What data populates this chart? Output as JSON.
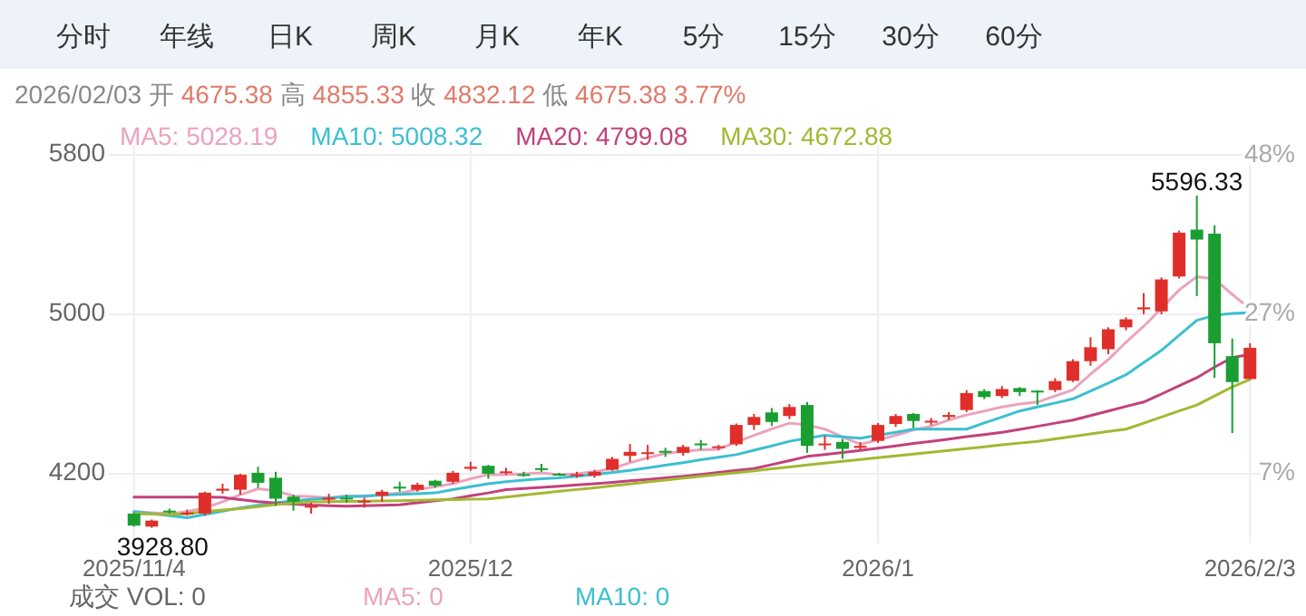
{
  "chart_data": {
    "type": "candlestick",
    "title": "2026/02/03 开 4675.38 高 4855.33 收 4832.12 低 4675.38 3.77%",
    "categories": [
      "2025/11/4",
      null,
      null,
      null,
      null,
      null,
      null,
      null,
      null,
      null,
      null,
      null,
      null,
      null,
      null,
      null,
      null,
      null,
      null,
      "2025/12",
      null,
      null,
      null,
      null,
      null,
      null,
      null,
      null,
      null,
      null,
      null,
      null,
      null,
      null,
      null,
      null,
      null,
      null,
      null,
      null,
      null,
      null,
      "2026/1",
      null,
      null,
      null,
      null,
      null,
      null,
      null,
      null,
      null,
      null,
      null,
      null,
      null,
      null,
      null,
      null,
      null,
      null,
      null,
      null,
      "2026/2/3"
    ],
    "ohlc": [
      [
        4000,
        4005,
        3935,
        3940
      ],
      [
        3935,
        3970,
        3928.8,
        3965
      ],
      [
        4015,
        4025,
        4000,
        4010
      ],
      [
        4000,
        4020,
        3990,
        4005
      ],
      [
        4000,
        4110,
        3990,
        4105
      ],
      [
        4115,
        4150,
        4100,
        4125
      ],
      [
        4120,
        4200,
        4095,
        4195
      ],
      [
        4205,
        4235,
        4130,
        4155
      ],
      [
        4180,
        4210,
        4040,
        4075
      ],
      [
        4085,
        4095,
        4015,
        4060
      ],
      [
        4030,
        4055,
        4000,
        4040
      ],
      [
        4070,
        4100,
        4050,
        4080
      ],
      [
        4080,
        4095,
        4055,
        4075
      ],
      [
        4060,
        4080,
        4030,
        4065
      ],
      [
        4090,
        4120,
        4060,
        4110
      ],
      [
        4135,
        4160,
        4110,
        4128
      ],
      [
        4120,
        4155,
        4110,
        4145
      ],
      [
        4165,
        4170,
        4130,
        4140
      ],
      [
        4160,
        4215,
        4150,
        4205
      ],
      [
        4225,
        4260,
        4215,
        4235
      ],
      [
        4240,
        4245,
        4175,
        4200
      ],
      [
        4205,
        4230,
        4195,
        4212
      ],
      [
        4198,
        4210,
        4185,
        4195
      ],
      [
        4228,
        4250,
        4210,
        4222
      ],
      [
        4200,
        4205,
        4190,
        4195
      ],
      [
        4192,
        4210,
        4180,
        4198
      ],
      [
        4190,
        4220,
        4180,
        4210
      ],
      [
        4220,
        4285,
        4215,
        4275
      ],
      [
        4290,
        4350,
        4260,
        4310
      ],
      [
        4300,
        4345,
        4270,
        4308
      ],
      [
        4315,
        4330,
        4285,
        4308
      ],
      [
        4305,
        4345,
        4290,
        4335
      ],
      [
        4352,
        4370,
        4320,
        4345
      ],
      [
        4332,
        4345,
        4320,
        4338
      ],
      [
        4348,
        4452,
        4340,
        4445
      ],
      [
        4445,
        4500,
        4420,
        4485
      ],
      [
        4508,
        4530,
        4440,
        4460
      ],
      [
        4490,
        4550,
        4475,
        4535
      ],
      [
        4545,
        4560,
        4305,
        4340
      ],
      [
        4345,
        4390,
        4320,
        4352
      ],
      [
        4360,
        4375,
        4275,
        4325
      ],
      [
        4330,
        4360,
        4320,
        4340
      ],
      [
        4365,
        4455,
        4355,
        4445
      ],
      [
        4450,
        4500,
        4435,
        4490
      ],
      [
        4500,
        4505,
        4430,
        4465
      ],
      [
        4460,
        4480,
        4445,
        4466
      ],
      [
        4485,
        4510,
        4470,
        4495
      ],
      [
        4520,
        4620,
        4510,
        4605
      ],
      [
        4615,
        4625,
        4575,
        4585
      ],
      [
        4590,
        4640,
        4580,
        4625
      ],
      [
        4630,
        4635,
        4590,
        4610
      ],
      [
        4617,
        4620,
        4545,
        4610
      ],
      [
        4620,
        4680,
        4610,
        4665
      ],
      [
        4667,
        4775,
        4660,
        4765
      ],
      [
        4765,
        4885,
        4742,
        4835
      ],
      [
        4825,
        4935,
        4800,
        4925
      ],
      [
        4935,
        4985,
        4920,
        4975
      ],
      [
        5025,
        5107,
        5001,
        5035
      ],
      [
        5015,
        5185,
        5000,
        5175
      ],
      [
        5190,
        5420,
        5180,
        5410
      ],
      [
        5425,
        5596.33,
        5092,
        5375
      ],
      [
        5405,
        5447,
        4681,
        4855
      ],
      [
        4790,
        4879,
        4404,
        4660
      ],
      [
        4675.38,
        4855.33,
        4675.38,
        4832.12
      ]
    ],
    "series": [
      {
        "type": "line",
        "name": "MA5: 5028.19",
        "color": "#eba3bd",
        "values": [
          4010,
          4005,
          4000,
          4010,
          4029,
          4060,
          4095,
          4125,
          4115,
          4089,
          4085,
          4080,
          4089,
          4085,
          4095,
          4104,
          4120,
          4135,
          4150,
          4175,
          4196,
          4196,
          4200,
          4205,
          4196,
          4200,
          4210,
          4226,
          4255,
          4280,
          4302,
          4312,
          4320,
          4323,
          4360,
          4393,
          4425,
          4454,
          4445,
          4424,
          4385,
          4348,
          4370,
          4393,
          4420,
          4439,
          4470,
          4495,
          4515,
          4535,
          4550,
          4560,
          4590,
          4621,
          4700,
          4773,
          4860,
          4940,
          5030,
          5122,
          5189,
          5177,
          5100,
          5028.19
        ]
      },
      {
        "type": "line",
        "name": "MA10: 5008.32",
        "color": "#3cbfd0",
        "values": [
          4010,
          4000,
          3990,
          3980,
          3995,
          4012,
          4029,
          4042,
          4055,
          4065,
          4072,
          4078,
          4085,
          4089,
          4093,
          4097,
          4100,
          4104,
          4120,
          4135,
          4150,
          4160,
          4168,
          4175,
          4180,
          4187,
          4197,
          4207,
          4217,
          4230,
          4243,
          4256,
          4270,
          4283,
          4296,
          4318,
          4340,
          4363,
          4378,
          4393,
          4385,
          4378,
          4393,
          4408,
          4424,
          4424,
          4424,
          4424,
          4455,
          4485,
          4515,
          4535,
          4555,
          4576,
          4615,
          4655,
          4697,
          4758,
          4819,
          4895,
          4970,
          4995,
          5005,
          5008.32
        ]
      },
      {
        "type": "line",
        "name": "MA20: 4799.08",
        "color": "#c2417c",
        "values": [
          4083,
          4083,
          4083,
          4083,
          4083,
          4082,
          4070,
          4060,
          4053,
          4048,
          4043,
          4040,
          4038,
          4040,
          4042,
          4044,
          4055,
          4065,
          4074,
          4090,
          4104,
          4120,
          4126,
          4132,
          4138,
          4144,
          4150,
          4157,
          4165,
          4172,
          4180,
          4187,
          4197,
          4207,
          4217,
          4226,
          4246,
          4266,
          4287,
          4297,
          4307,
          4317,
          4328,
          4340,
          4352,
          4363,
          4374,
          4386,
          4397,
          4408,
          4423,
          4438,
          4454,
          4469,
          4492,
          4515,
          4538,
          4560,
          4600,
          4641,
          4682,
          4735,
          4783,
          4799.08
        ]
      },
      {
        "type": "line",
        "name": "MA30: 4672.88",
        "color": "#a3b832",
        "values": [
          4000,
          3998,
          3995,
          4000,
          4010,
          4018,
          4025,
          4035,
          4045,
          4052,
          4059,
          4060,
          4061,
          4062,
          4064,
          4065,
          4067,
          4069,
          4071,
          4073,
          4074,
          4083,
          4093,
          4102,
          4112,
          4121,
          4130,
          4140,
          4149,
          4159,
          4168,
          4178,
          4187,
          4197,
          4206,
          4215,
          4225,
          4234,
          4244,
          4253,
          4263,
          4272,
          4281,
          4290,
          4299,
          4308,
          4317,
          4326,
          4335,
          4345,
          4354,
          4363,
          4375,
          4387,
          4400,
          4412,
          4424,
          4454,
          4485,
          4515,
          4545,
          4590,
          4636,
          4672.88
        ]
      }
    ],
    "ylim": [
      3850,
      5850
    ],
    "yticks": [
      4200,
      5000,
      5800
    ],
    "y2lim": [
      -2.0,
      48.9
    ],
    "y2ticks": [
      {
        "value": 6.9,
        "label": "7%"
      },
      {
        "value": 27.3,
        "label": "27%"
      },
      {
        "value": 47.6,
        "label": "48%"
      }
    ],
    "grid": true,
    "legend": "top",
    "annotations": [
      "分时",
      "年线",
      "日K",
      "周K",
      "月K",
      "年K",
      "5分",
      "15分",
      "30分",
      "60分",
      "成交  VOL: 0",
      "MA5: 0",
      "MA10: 0",
      {
        "text": "3928.80",
        "y": 3928.8
      },
      {
        "text": "5596.33",
        "y": 5596.33
      }
    ]
  }
}
